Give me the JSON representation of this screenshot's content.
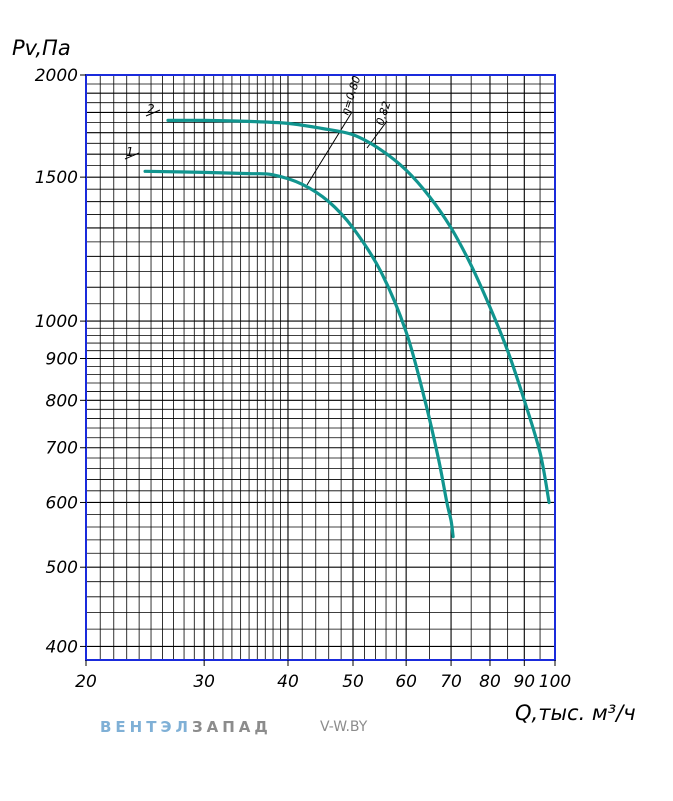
{
  "chart_data": {
    "type": "line",
    "xlabel": "Q,тыс. м³/ч",
    "ylabel": "Pv,Па",
    "xscale": "log",
    "yscale": "log",
    "xlim": [
      20,
      100
    ],
    "ylim": [
      385,
      2000
    ],
    "x_ticks": [
      "20",
      "30",
      "40",
      "50",
      "60",
      "70",
      "80",
      "90",
      "100"
    ],
    "y_ticks": [
      "2000",
      "1500",
      "1000",
      "900",
      "800",
      "700",
      "600",
      "500",
      "400"
    ],
    "grid": true,
    "series": [
      {
        "name": "1",
        "color": "#11958f",
        "x": [
          24.5,
          30,
          35,
          38,
          42,
          46,
          50,
          55,
          60,
          64,
          67,
          69,
          70,
          70.5
        ],
        "y": [
          1525,
          1520,
          1515,
          1510,
          1470,
          1400,
          1300,
          1150,
          970,
          800,
          680,
          600,
          570,
          545
        ]
      },
      {
        "name": "2",
        "color": "#11958f",
        "x": [
          26.5,
          30,
          35,
          40,
          45,
          50,
          55,
          60,
          65,
          70,
          75,
          80,
          85,
          90,
          95,
          98
        ],
        "y": [
          1760,
          1760,
          1755,
          1745,
          1720,
          1690,
          1620,
          1530,
          1420,
          1300,
          1170,
          1040,
          920,
          800,
          690,
          600
        ]
      }
    ],
    "annotations": [
      {
        "text": "η=0.80"
      },
      {
        "text": "0.82"
      }
    ]
  },
  "watermark": {
    "part1": "ВЕНТЭЛ",
    "part2": "ЗАПАД",
    "url": "V-W.BY"
  }
}
